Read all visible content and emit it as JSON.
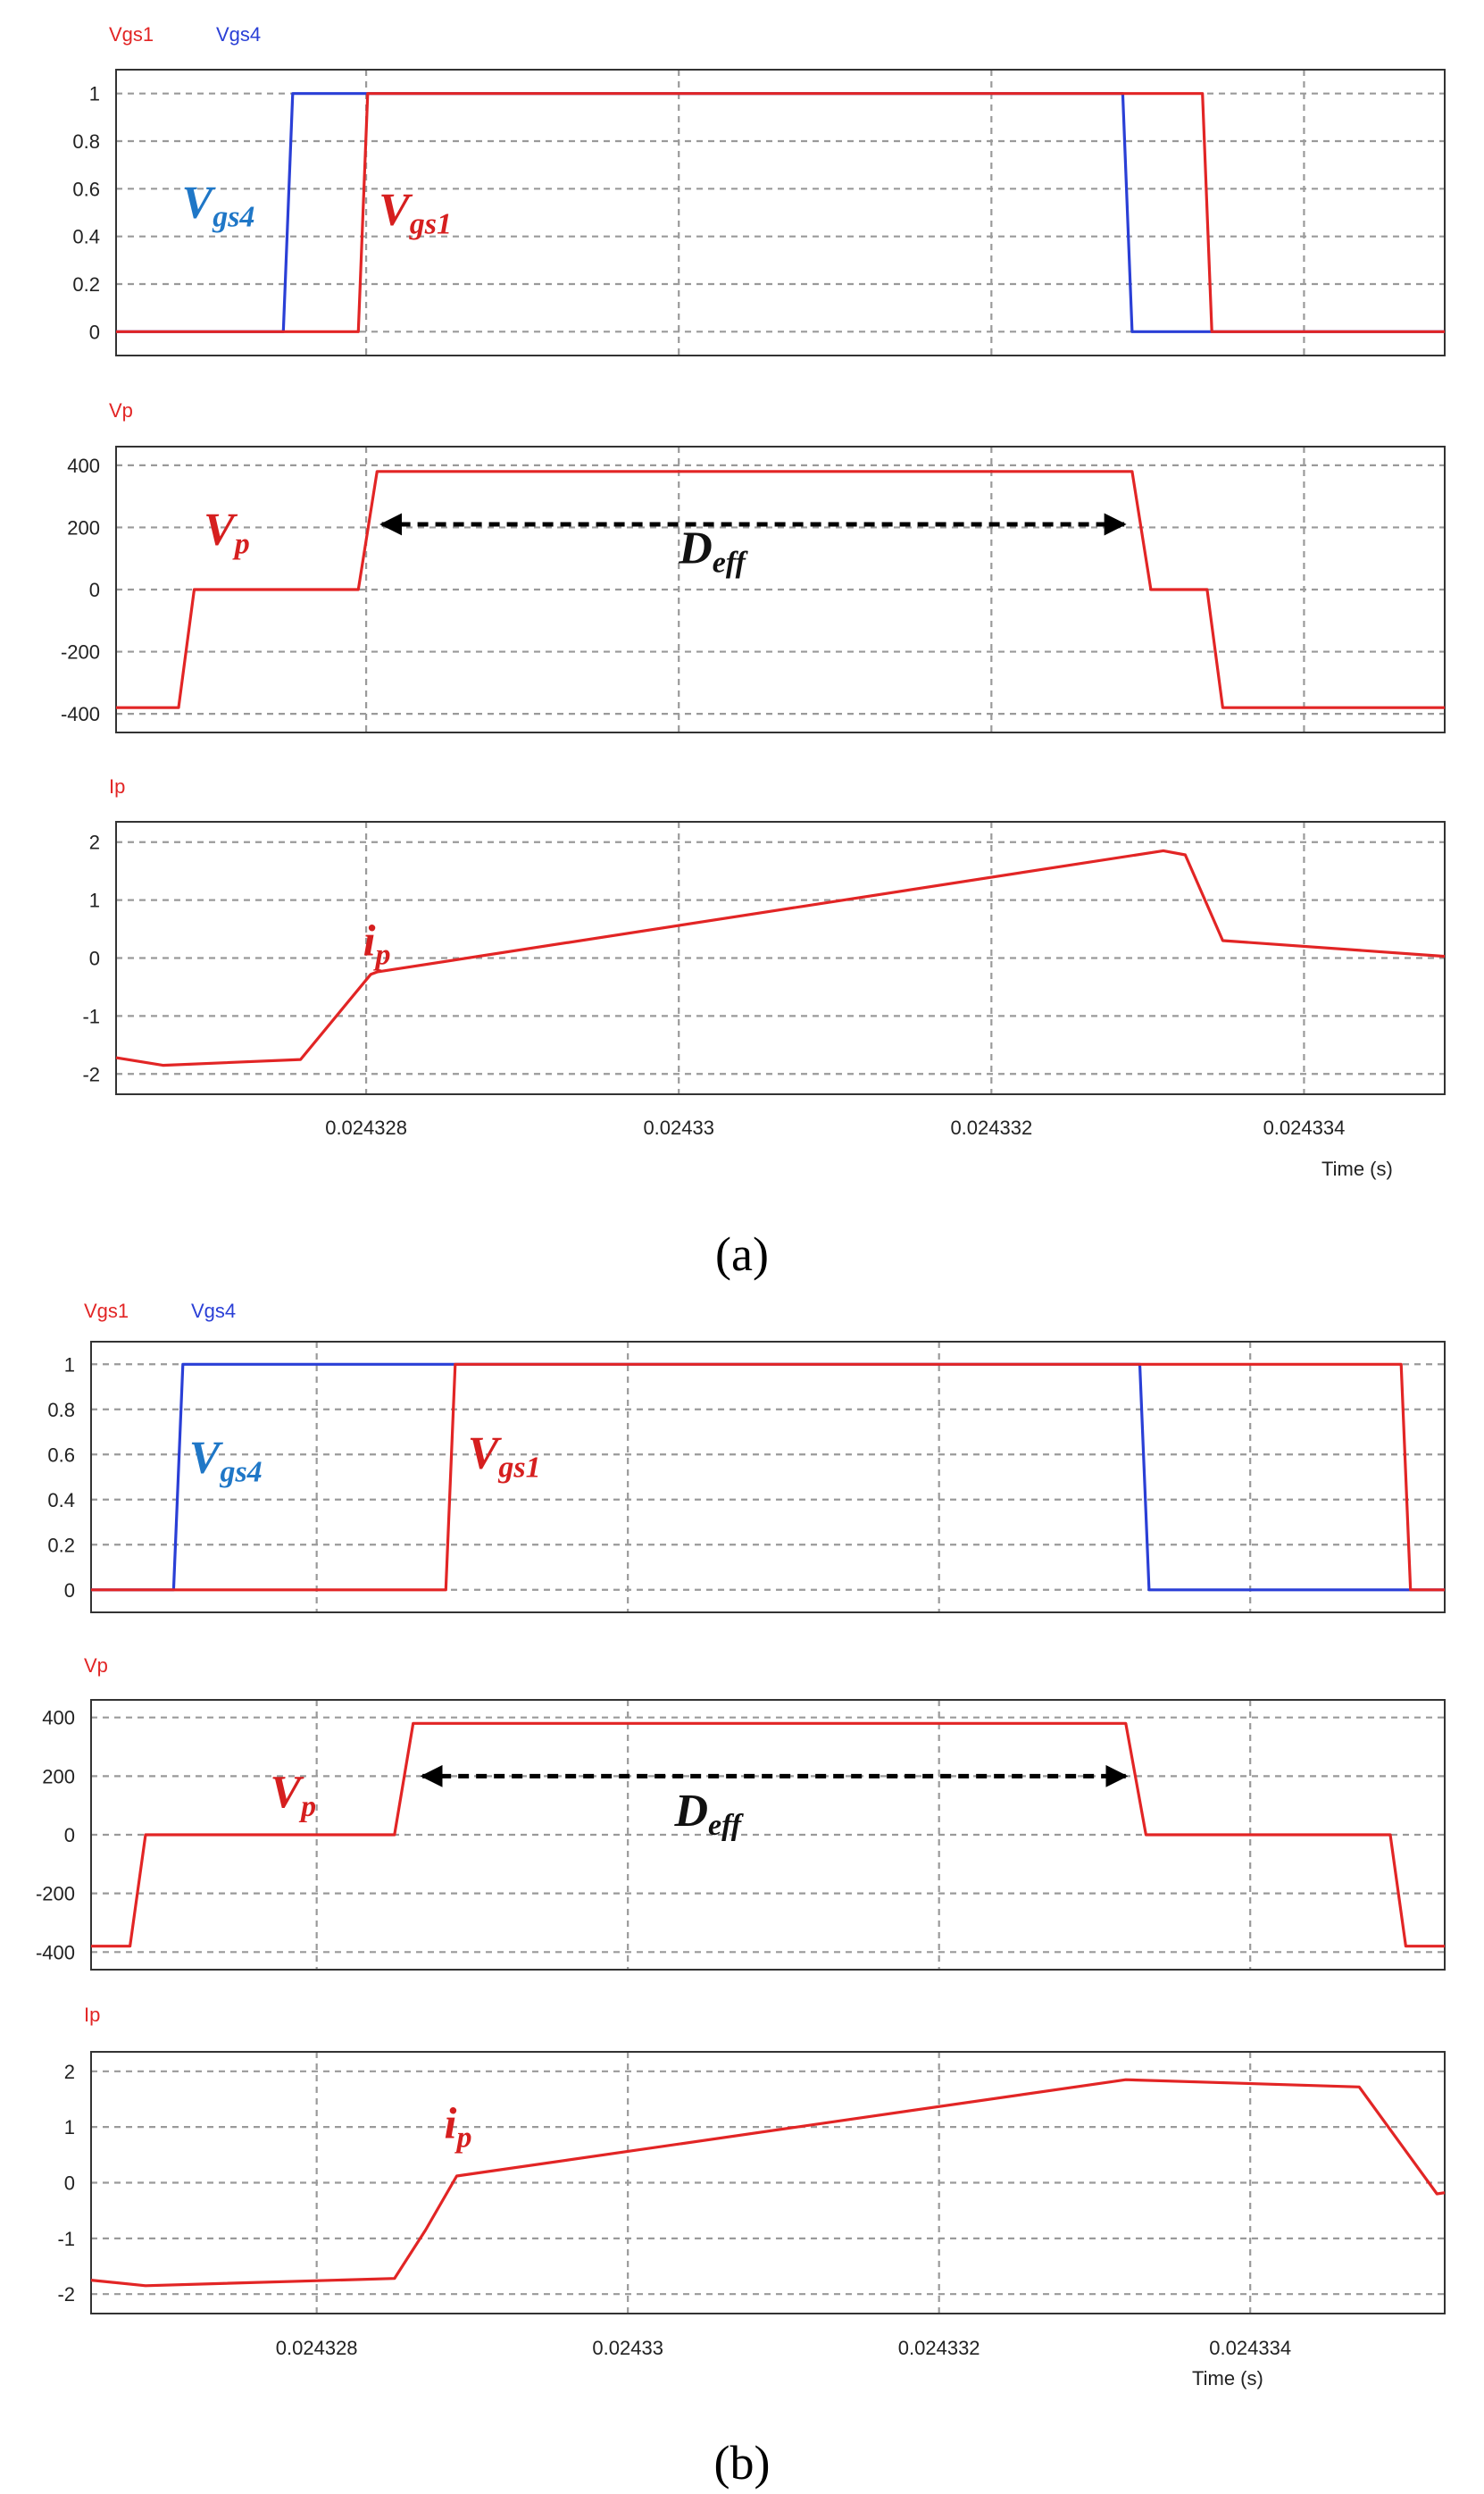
{
  "chart_data": [
    {
      "type": "line",
      "caption": "(a)",
      "xlabel": "Time (s)",
      "x_ticks": [
        0.024328,
        0.02433,
        0.024332,
        0.024334
      ],
      "x_tick_labels": [
        "0.024328",
        "0.02433",
        "0.024332",
        "0.024334"
      ],
      "xlim": [
        0.0243264,
        0.0243349
      ],
      "panels": [
        {
          "id": "gate",
          "legend": [
            "Vgs1",
            "Vgs4"
          ],
          "ylim": [
            -0.1,
            1.1
          ],
          "y_ticks": [
            0,
            0.2,
            0.4,
            0.6,
            0.8,
            1
          ],
          "y_tick_labels": [
            "0",
            "0.2",
            "0.4",
            "0.6",
            "0.8",
            "1"
          ],
          "series": [
            {
              "name": "Vgs4",
              "color": "#2a3fd6",
              "x": [
                0.0243264,
                0.02432747,
                0.02432753,
                0.02433284,
                0.0243329,
                0.0243349
              ],
              "y": [
                0,
                0,
                1,
                1,
                0,
                0
              ]
            },
            {
              "name": "Vgs1",
              "color": "#e22525",
              "x": [
                0.0243264,
                0.02432795,
                0.02432801,
                0.02433335,
                0.02433341,
                0.0243349
              ],
              "y": [
                0,
                0,
                1,
                1,
                0,
                0
              ]
            }
          ],
          "annotations": [
            {
              "text": "V",
              "sub": "gs4",
              "color": "#1f77c7",
              "x": 0.02432682,
              "y": 0.48
            },
            {
              "text": "V",
              "sub": "gs1",
              "color": "#d61f1f",
              "x": 0.02432808,
              "y": 0.45
            }
          ]
        },
        {
          "id": "vp",
          "legend": [
            "Vp"
          ],
          "ylim": [
            -460,
            460
          ],
          "y_ticks": [
            -400,
            -200,
            0,
            200,
            400
          ],
          "y_tick_labels": [
            "-400",
            "-200",
            "0",
            "200",
            "400"
          ],
          "series": [
            {
              "name": "Vp",
              "color": "#e22525",
              "x": [
                0.0243264,
                0.0243268,
                0.0243269,
                0.02432754,
                0.02432795,
                0.02432807,
                0.0243329,
                0.02433302,
                0.02433318,
                0.02433338,
                0.02433348,
                0.0243349
              ],
              "y": [
                -380,
                -380,
                0,
                0,
                0,
                380,
                380,
                0,
                0,
                0,
                -380,
                -380
              ]
            }
          ],
          "annotations": [
            {
              "text": "V",
              "sub": "p",
              "color": "#d61f1f",
              "x": 0.02432696,
              "y": 145
            },
            {
              "text": "D",
              "sub": "eff",
              "color": "#111111",
              "x": 0.02433,
              "y": 85
            }
          ],
          "arrow": {
            "x_start": 0.0243281,
            "x_end": 0.02433285,
            "y": 210
          }
        },
        {
          "id": "ip",
          "legend": [
            "Ip"
          ],
          "ylim": [
            -2.35,
            2.35
          ],
          "y_ticks": [
            -2,
            -1,
            0,
            1,
            2
          ],
          "y_tick_labels": [
            "-2",
            "-1",
            "0",
            "1",
            "2"
          ],
          "series": [
            {
              "name": "Ip",
              "color": "#e22525",
              "x": [
                0.0243264,
                0.0243267,
                0.02432758,
                0.02432803,
                0.02432807,
                0.0243331,
                0.02433324,
                0.02433348,
                0.0243349
              ],
              "y": [
                -1.72,
                -1.85,
                -1.75,
                -0.28,
                -0.24,
                1.85,
                1.78,
                0.3,
                0.03
              ]
            }
          ],
          "annotations": [
            {
              "text": "i",
              "sub": "p",
              "color": "#d61f1f",
              "x": 0.02432798,
              "y": 0.05
            }
          ]
        }
      ]
    },
    {
      "type": "line",
      "caption": "(b)",
      "xlabel": "Time (s)",
      "x_ticks": [
        0.024328,
        0.02433,
        0.024332,
        0.024334
      ],
      "x_tick_labels": [
        "0.024328",
        "0.02433",
        "0.024332",
        "0.024334"
      ],
      "xlim": [
        0.02432655,
        0.02433525
      ],
      "panels": [
        {
          "id": "gate",
          "legend": [
            "Vgs1",
            "Vgs4"
          ],
          "ylim": [
            -0.1,
            1.1
          ],
          "y_ticks": [
            0,
            0.2,
            0.4,
            0.6,
            0.8,
            1
          ],
          "y_tick_labels": [
            "0",
            "0.2",
            "0.4",
            "0.6",
            "0.8",
            "1"
          ],
          "series": [
            {
              "name": "Vgs4",
              "color": "#2a3fd6",
              "x": [
                0.02432655,
                0.02432708,
                0.02432714,
                0.02433329,
                0.02433335,
                0.02433525
              ],
              "y": [
                0,
                0,
                1,
                1,
                0,
                0
              ]
            },
            {
              "name": "Vgs1",
              "color": "#e22525",
              "x": [
                0.02432655,
                0.02432883,
                0.02432889,
                0.02433497,
                0.02433503,
                0.02433525
              ],
              "y": [
                0,
                0,
                1,
                1,
                0,
                0
              ]
            }
          ],
          "annotations": [
            {
              "text": "V",
              "sub": "gs4",
              "color": "#1f77c7",
              "x": 0.02432718,
              "y": 0.52
            },
            {
              "text": "V",
              "sub": "gs1",
              "color": "#d61f1f",
              "x": 0.02432897,
              "y": 0.54
            }
          ]
        },
        {
          "id": "vp",
          "legend": [
            "Vp"
          ],
          "ylim": [
            -460,
            460
          ],
          "y_ticks": [
            -400,
            -200,
            0,
            200,
            400
          ],
          "y_tick_labels": [
            "-400",
            "-200",
            "0",
            "200",
            "400"
          ],
          "series": [
            {
              "name": "Vp",
              "color": "#e22525",
              "x": [
                0.02432655,
                0.0243268,
                0.0243269,
                0.0243285,
                0.02432862,
                0.0243332,
                0.02433333,
                0.0243349,
                0.024335,
                0.02433525
              ],
              "y": [
                -380,
                -380,
                0,
                0,
                380,
                380,
                0,
                0,
                -380,
                -380
              ]
            }
          ],
          "annotations": [
            {
              "text": "V",
              "sub": "p",
              "color": "#d61f1f",
              "x": 0.0243277,
              "y": 95
            },
            {
              "text": "D",
              "sub": "eff",
              "color": "#111111",
              "x": 0.0243303,
              "y": 30
            }
          ],
          "arrow": {
            "x_start": 0.02432868,
            "x_end": 0.0243332,
            "y": 200
          }
        },
        {
          "id": "ip",
          "legend": [
            "Ip"
          ],
          "ylim": [
            -2.35,
            2.35
          ],
          "y_ticks": [
            -2,
            -1,
            0,
            1,
            2
          ],
          "y_tick_labels": [
            "-2",
            "-1",
            "0",
            "1",
            "2"
          ],
          "series": [
            {
              "name": "Ip",
              "color": "#e22525",
              "x": [
                0.02432655,
                0.0243269,
                0.0243285,
                0.0243287,
                0.0243289,
                0.0243332,
                0.0243347,
                0.0243352,
                0.02433525
              ],
              "y": [
                -1.75,
                -1.85,
                -1.72,
                -0.85,
                0.12,
                1.85,
                1.72,
                -0.2,
                -0.18
              ]
            }
          ],
          "annotations": [
            {
              "text": "i",
              "sub": "p",
              "color": "#d61f1f",
              "x": 0.02432882,
              "y": 0.8
            }
          ]
        }
      ]
    }
  ]
}
